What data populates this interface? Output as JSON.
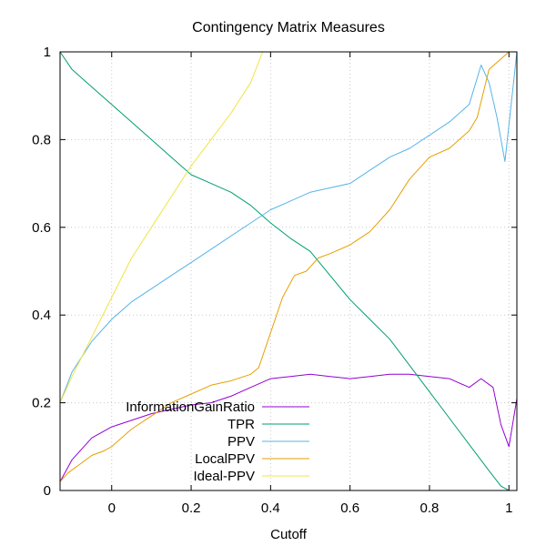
{
  "chart_data": {
    "type": "line",
    "title": "Contingency Matrix Measures",
    "xlabel": "Cutoff",
    "ylabel": "",
    "xlim": [
      -0.13,
      1.02
    ],
    "ylim": [
      0,
      1
    ],
    "xticks": [
      0,
      0.2,
      0.4,
      0.6,
      0.8,
      1
    ],
    "xtick_labels": [
      "0",
      "0.2",
      "0.4",
      "0.6",
      "0.8",
      "1"
    ],
    "yticks": [
      0,
      0.2,
      0.4,
      0.6,
      0.8,
      1
    ],
    "ytick_labels": [
      "0",
      "0.2",
      "0.4",
      "0.6",
      "0.8",
      "1"
    ],
    "grid": true,
    "legend_position": "bottom-left",
    "series": [
      {
        "name": "InformationGainRatio",
        "color": "#9400d3",
        "x": [
          -0.13,
          -0.1,
          -0.05,
          0,
          0.05,
          0.1,
          0.15,
          0.2,
          0.25,
          0.3,
          0.35,
          0.4,
          0.45,
          0.5,
          0.55,
          0.6,
          0.65,
          0.7,
          0.75,
          0.8,
          0.85,
          0.9,
          0.93,
          0.96,
          0.98,
          1.0,
          1.02
        ],
        "y": [
          0.02,
          0.07,
          0.12,
          0.145,
          0.16,
          0.175,
          0.185,
          0.195,
          0.2,
          0.215,
          0.235,
          0.255,
          0.26,
          0.265,
          0.26,
          0.255,
          0.26,
          0.265,
          0.265,
          0.26,
          0.255,
          0.235,
          0.255,
          0.235,
          0.15,
          0.1,
          0.21
        ]
      },
      {
        "name": "TPR",
        "color": "#009e73",
        "x": [
          -0.13,
          -0.1,
          -0.05,
          0,
          0.05,
          0.1,
          0.15,
          0.2,
          0.25,
          0.3,
          0.35,
          0.4,
          0.45,
          0.5,
          0.55,
          0.6,
          0.65,
          0.7,
          0.75,
          0.8,
          0.85,
          0.9,
          0.95,
          0.98,
          1.0
        ],
        "y": [
          1.0,
          0.96,
          0.92,
          0.88,
          0.84,
          0.8,
          0.76,
          0.72,
          0.7,
          0.68,
          0.65,
          0.61,
          0.575,
          0.545,
          0.49,
          0.435,
          0.39,
          0.345,
          0.285,
          0.225,
          0.165,
          0.105,
          0.045,
          0.01,
          0.0
        ]
      },
      {
        "name": "PPV",
        "color": "#56b4e9",
        "x": [
          -0.13,
          -0.1,
          -0.05,
          0,
          0.05,
          0.1,
          0.15,
          0.2,
          0.25,
          0.3,
          0.35,
          0.4,
          0.45,
          0.5,
          0.55,
          0.6,
          0.65,
          0.7,
          0.75,
          0.8,
          0.85,
          0.9,
          0.93,
          0.95,
          0.97,
          0.99,
          1.02
        ],
        "y": [
          0.2,
          0.27,
          0.34,
          0.39,
          0.43,
          0.46,
          0.49,
          0.52,
          0.55,
          0.58,
          0.61,
          0.64,
          0.66,
          0.68,
          0.69,
          0.7,
          0.73,
          0.76,
          0.78,
          0.81,
          0.84,
          0.88,
          0.97,
          0.93,
          0.85,
          0.75,
          1.0
        ]
      },
      {
        "name": "LocalPPV",
        "color": "#e69f00",
        "x": [
          -0.13,
          -0.11,
          -0.08,
          -0.05,
          -0.02,
          0,
          0.05,
          0.1,
          0.15,
          0.2,
          0.25,
          0.3,
          0.35,
          0.37,
          0.4,
          0.43,
          0.46,
          0.49,
          0.5,
          0.52,
          0.55,
          0.6,
          0.65,
          0.7,
          0.75,
          0.8,
          0.85,
          0.9,
          0.92,
          0.95,
          1.0
        ],
        "y": [
          0.02,
          0.04,
          0.06,
          0.08,
          0.09,
          0.1,
          0.14,
          0.17,
          0.2,
          0.22,
          0.24,
          0.25,
          0.265,
          0.28,
          0.36,
          0.44,
          0.49,
          0.5,
          0.51,
          0.53,
          0.54,
          0.56,
          0.59,
          0.64,
          0.71,
          0.76,
          0.78,
          0.82,
          0.85,
          0.96,
          1.0
        ]
      },
      {
        "name": "Ideal-PPV",
        "color": "#f0e442",
        "x": [
          -0.13,
          -0.1,
          -0.05,
          0,
          0.05,
          0.1,
          0.15,
          0.2,
          0.25,
          0.3,
          0.35,
          0.38
        ],
        "y": [
          0.2,
          0.26,
          0.35,
          0.44,
          0.53,
          0.6,
          0.67,
          0.74,
          0.8,
          0.86,
          0.93,
          1.0
        ]
      }
    ]
  }
}
